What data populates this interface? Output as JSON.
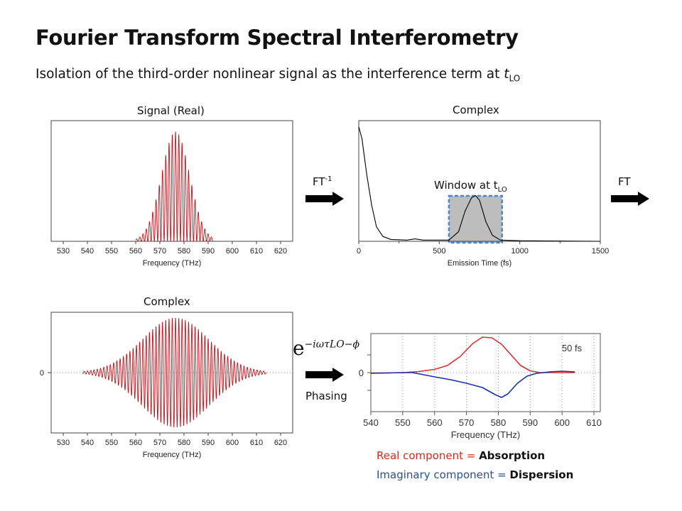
{
  "slide": {
    "title": "Fourier Transform Spectral Interferometry",
    "subtitle_main": "Isolation of the third-order nonlinear signal as the interference term at ",
    "subtitle_var": "t",
    "subtitle_sub": "LO"
  },
  "labels": {
    "ft_inverse": "FT",
    "ft_inverse_sup": "-1",
    "ft": "FT",
    "window": "Window at t",
    "window_sub": "LO",
    "phasing": "Phasing",
    "formula_base": "e",
    "formula_exp": "−iωτLO−ϕ"
  },
  "legend": {
    "real_text": "Real component = ",
    "real_bold": "Absorption",
    "imag_text": "Imaginary component = ",
    "imag_bold": "Dispersion"
  },
  "colors": {
    "red": "#c0141b",
    "blue": "#1d2fb0",
    "legend_real": "#e0261b",
    "legend_imag": "#2f4f8f",
    "window_fill": "#bdbdbd",
    "window_border": "#4a86c8"
  },
  "chart_data": [
    {
      "id": "signal_real",
      "type": "line",
      "title": "Signal (Real)",
      "xlabel": "Frequency (THz)",
      "ylabel": "",
      "xlim": [
        525,
        625
      ],
      "ylim": [
        0,
        1.1
      ],
      "xticks": [
        530,
        540,
        550,
        560,
        570,
        580,
        590,
        600,
        610,
        620
      ],
      "series": [
        {
          "kind": "fringes",
          "color": "#c0141b",
          "x_range": [
            560,
            592
          ],
          "peak_x": 576.5,
          "peak_y": 1.0,
          "fringe_period_thz": 1.35
        }
      ]
    },
    {
      "id": "complex_time",
      "type": "line",
      "title": "Complex",
      "xlabel": "Emission Time (fs)",
      "ylabel": "",
      "xlim": [
        0,
        1500
      ],
      "ylim": [
        0,
        1.0
      ],
      "xticks": [
        0,
        500,
        1000,
        1500
      ],
      "window_x": [
        560,
        890
      ],
      "series": [
        {
          "kind": "envelope",
          "color": "#000000",
          "points": [
            [
              0,
              0.95
            ],
            [
              20,
              0.85
            ],
            [
              50,
              0.55
            ],
            [
              80,
              0.3
            ],
            [
              110,
              0.12
            ],
            [
              150,
              0.04
            ],
            [
              200,
              0.015
            ],
            [
              300,
              0.01
            ],
            [
              350,
              0.02
            ],
            [
              400,
              0.01
            ],
            [
              560,
              0.01
            ],
            [
              620,
              0.08
            ],
            [
              660,
              0.25
            ],
            [
              700,
              0.36
            ],
            [
              725,
              0.38
            ],
            [
              750,
              0.34
            ],
            [
              790,
              0.16
            ],
            [
              830,
              0.05
            ],
            [
              880,
              0.01
            ],
            [
              1000,
              0.005
            ],
            [
              1500,
              0.0
            ]
          ]
        }
      ]
    },
    {
      "id": "complex_freq",
      "type": "line",
      "title": "Complex",
      "xlabel": "Frequency (THz)",
      "ylabel": "",
      "xlim": [
        525,
        625
      ],
      "ylim": [
        -1.1,
        1.1
      ],
      "yticks": [
        0
      ],
      "xticks": [
        530,
        540,
        550,
        560,
        570,
        580,
        590,
        600,
        610,
        620
      ],
      "series": [
        {
          "kind": "oscillation",
          "color": "#c0141b",
          "x_range": [
            538,
            614
          ],
          "peak_x": 576.5,
          "peak_y": 1.0,
          "fringe_period_thz": 1.35
        }
      ]
    },
    {
      "id": "phased",
      "type": "line",
      "title": "",
      "annotation": "50 fs",
      "xlabel": "Frequency (THz)",
      "ylabel": "",
      "xlim": [
        540,
        612
      ],
      "ylim": [
        -1.1,
        1.1
      ],
      "yticks": [
        0
      ],
      "xticks": [
        540,
        550,
        560,
        570,
        580,
        590,
        600,
        610
      ],
      "grid": true,
      "series": [
        {
          "name": "Real",
          "color": "#d93030",
          "points": [
            [
              540,
              -0.01
            ],
            [
              545,
              -0.01
            ],
            [
              550,
              0.0
            ],
            [
              555,
              0.03
            ],
            [
              560,
              0.09
            ],
            [
              564,
              0.2
            ],
            [
              568,
              0.45
            ],
            [
              572,
              0.82
            ],
            [
              575,
              1.0
            ],
            [
              578,
              0.98
            ],
            [
              581,
              0.8
            ],
            [
              584,
              0.5
            ],
            [
              587,
              0.2
            ],
            [
              590,
              0.05
            ],
            [
              593,
              0.0
            ],
            [
              596,
              0.0
            ],
            [
              600,
              0.0
            ],
            [
              604,
              0.0
            ]
          ]
        },
        {
          "name": "Imaginary",
          "color": "#1d2fb0",
          "points": [
            [
              540,
              -0.02
            ],
            [
              545,
              -0.01
            ],
            [
              550,
              0.0
            ],
            [
              553,
              0.0
            ],
            [
              556,
              -0.05
            ],
            [
              560,
              -0.12
            ],
            [
              565,
              -0.2
            ],
            [
              570,
              -0.3
            ],
            [
              575,
              -0.42
            ],
            [
              579,
              -0.62
            ],
            [
              581,
              -0.7
            ],
            [
              583,
              -0.6
            ],
            [
              586,
              -0.3
            ],
            [
              589,
              -0.1
            ],
            [
              592,
              -0.02
            ],
            [
              596,
              0.02
            ],
            [
              600,
              0.04
            ],
            [
              604,
              0.02
            ]
          ]
        }
      ]
    }
  ]
}
